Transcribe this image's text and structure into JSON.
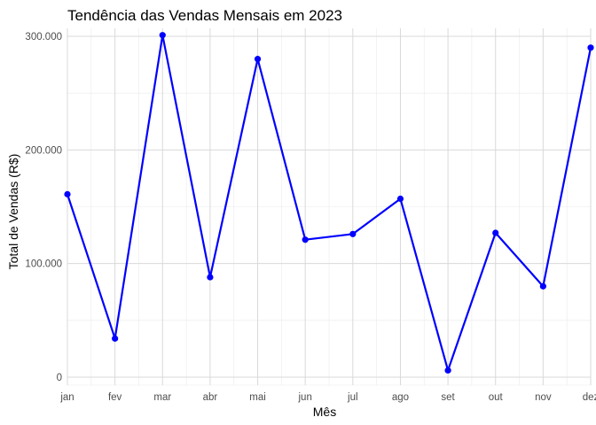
{
  "chart_data": {
    "type": "line",
    "title": "Tendência das Vendas Mensais em 2023",
    "xlabel": "Mês",
    "ylabel": "Total de Vendas (R$)",
    "categories": [
      "jan",
      "fev",
      "mar",
      "abr",
      "mai",
      "jun",
      "jul",
      "ago",
      "set",
      "out",
      "nov",
      "dez"
    ],
    "series": [
      {
        "values": [
          161000,
          34000,
          301000,
          88000,
          280000,
          121000,
          126000,
          157000,
          6000,
          127000,
          80000,
          290000
        ]
      }
    ],
    "ylim": [
      -7000,
      307000
    ],
    "y_ticks": [
      0,
      100000,
      200000,
      300000
    ],
    "y_tick_labels": [
      "0",
      "100.000",
      "200.000",
      "300.000"
    ],
    "grid": true,
    "legend": "none",
    "colors": {
      "line": "#0000ff",
      "grid_major": "#d9d9d9",
      "grid_minor": "#ebebeb",
      "background": "#ffffff"
    }
  }
}
